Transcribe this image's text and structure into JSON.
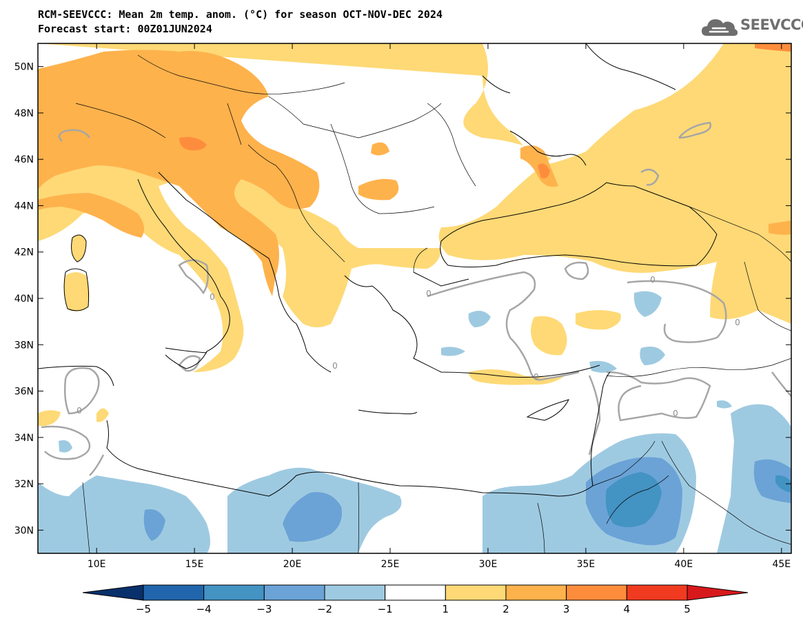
{
  "header": {
    "title": "RCM-SEEVCCC: Mean 2m temp. anom. (°C) for season OCT-NOV-DEC 2024",
    "subtitle": "Forecast start: 00Z01JUN2024"
  },
  "logo": {
    "text": "SEEVCCC",
    "icon": "cloud-icon",
    "color": "#6e6e6e"
  },
  "map": {
    "lat_labels": [
      "50N",
      "48N",
      "46N",
      "44N",
      "42N",
      "40N",
      "38N",
      "36N",
      "34N",
      "32N",
      "30N"
    ],
    "lon_labels": [
      "10E",
      "15E",
      "20E",
      "25E",
      "30E",
      "35E",
      "40E",
      "45E"
    ],
    "contour_label": "0",
    "extent": {
      "lon": [
        7,
        45.5
      ],
      "lat": [
        29,
        51
      ]
    }
  },
  "colorbar": {
    "levels": [
      "−5",
      "−4",
      "−3",
      "−2",
      "−1",
      "1",
      "2",
      "3",
      "4",
      "5"
    ],
    "colors": [
      "#08306b",
      "#2166ac",
      "#4393c3",
      "#6ba3d6",
      "#9ecae1",
      "#ffffff",
      "#fed976",
      "#feb24c",
      "#fd8d3c",
      "#f03b20",
      "#d7191c"
    ]
  }
}
